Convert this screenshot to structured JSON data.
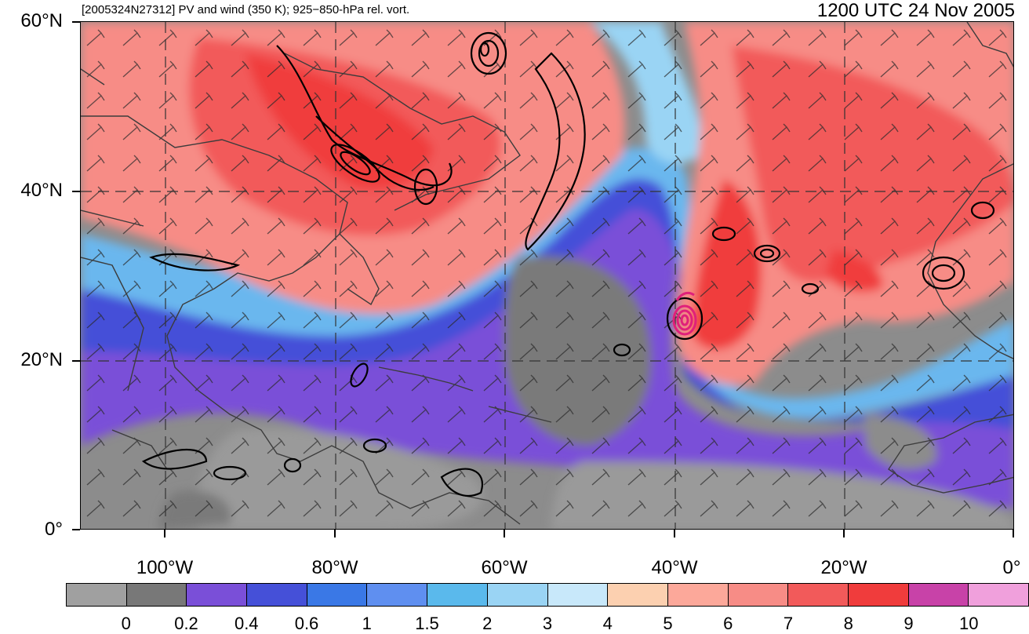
{
  "title_left": "[2005324N27312] PV and wind (350 K); 925−850-hPa rel. vort.",
  "title_right": "1200 UTC 24 Nov 2005",
  "lat_labels": [
    "60°N",
    "40°N",
    "20°N",
    "0°"
  ],
  "lon_labels": [
    "100°W",
    "80°W",
    "60°W",
    "40°W",
    "20°W",
    "0°"
  ],
  "colorbar": {
    "colors": [
      "#a0a0a0",
      "#787878",
      "#7a4fd8",
      "#4550d8",
      "#3a78e6",
      "#5f8ff0",
      "#5ab9ec",
      "#9ad4f4",
      "#c8e8fa",
      "#fcd0b0",
      "#fca89a",
      "#f78c86",
      "#f25a5a",
      "#f03c3c",
      "#c842a8",
      "#f0a0dc"
    ],
    "labels": [
      "0",
      "0.2",
      "0.4",
      "0.6",
      "1",
      "1.5",
      "2",
      "3",
      "4",
      "5",
      "6",
      "7",
      "8",
      "9",
      "10"
    ]
  },
  "legend_colors": {
    "vorticity_contour": "#000000",
    "storm_contour": "#e0207a",
    "coastline": "#3c3c3c"
  }
}
